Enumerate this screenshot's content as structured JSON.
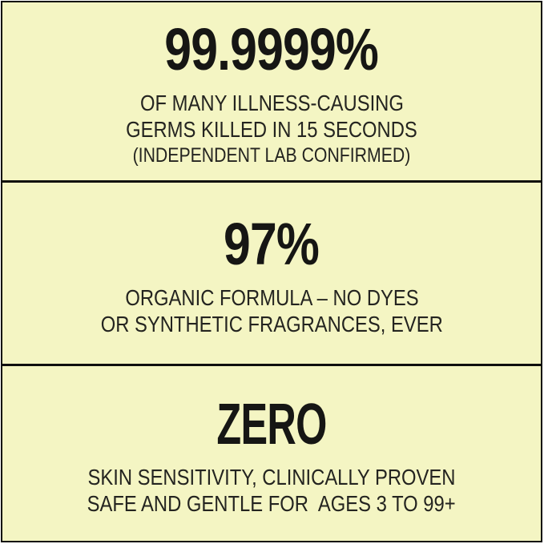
{
  "colors": {
    "page_bg": "#ffffff",
    "panel_bg": "#f4f5c3",
    "line": "#0f0f0d",
    "ink": "#161614",
    "ink_soft": "#242420"
  },
  "panels": [
    {
      "stat": "99.9999%",
      "lines": [
        "OF MANY ILLNESS-CAUSING",
        "GERMS KILLED IN 15 SECONDS"
      ],
      "note": "(INDEPENDENT LAB CONFIRMED)"
    },
    {
      "stat": "97%",
      "lines": [
        "ORGANIC FORMULA – NO DYES",
        "OR SYNTHETIC FRAGRANCES, EVER"
      ]
    },
    {
      "stat": "ZERO",
      "lines": [
        "SKIN SENSITIVITY, CLINICALLY PROVEN",
        "SAFE AND GENTLE FOR  AGES 3 TO 99+"
      ]
    }
  ]
}
